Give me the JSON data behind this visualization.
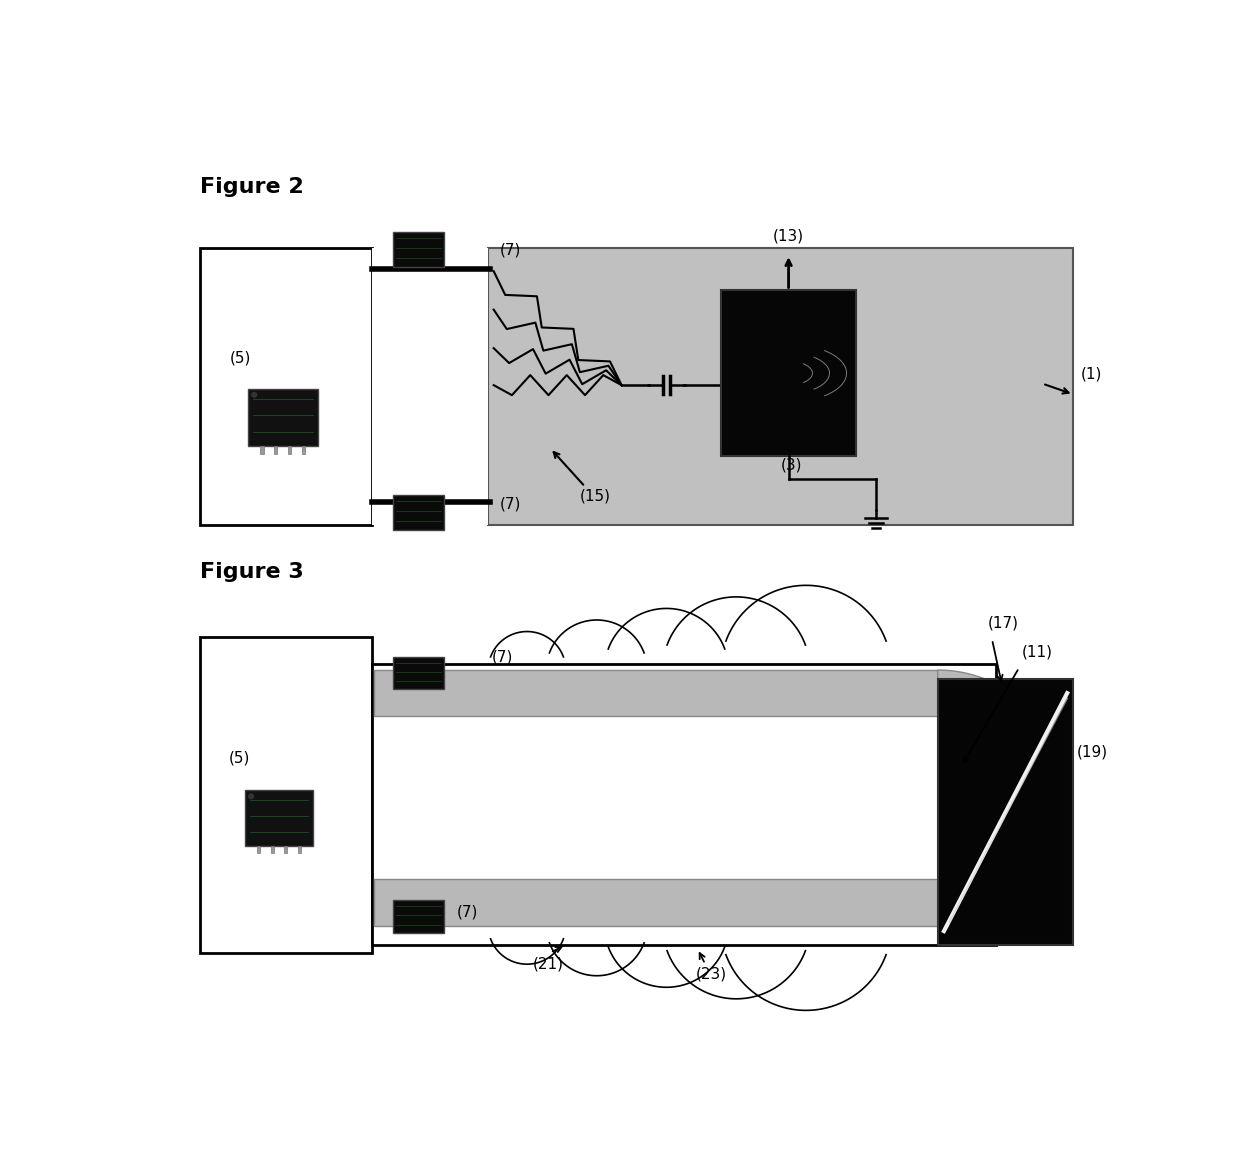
{
  "fig_width": 12.4,
  "fig_height": 11.69,
  "bg_color": "#ffffff",
  "gray_fill": "#c0c0c0",
  "wire_gray": "#b8b8b8",
  "black": "#000000",
  "white": "#ffffff"
}
